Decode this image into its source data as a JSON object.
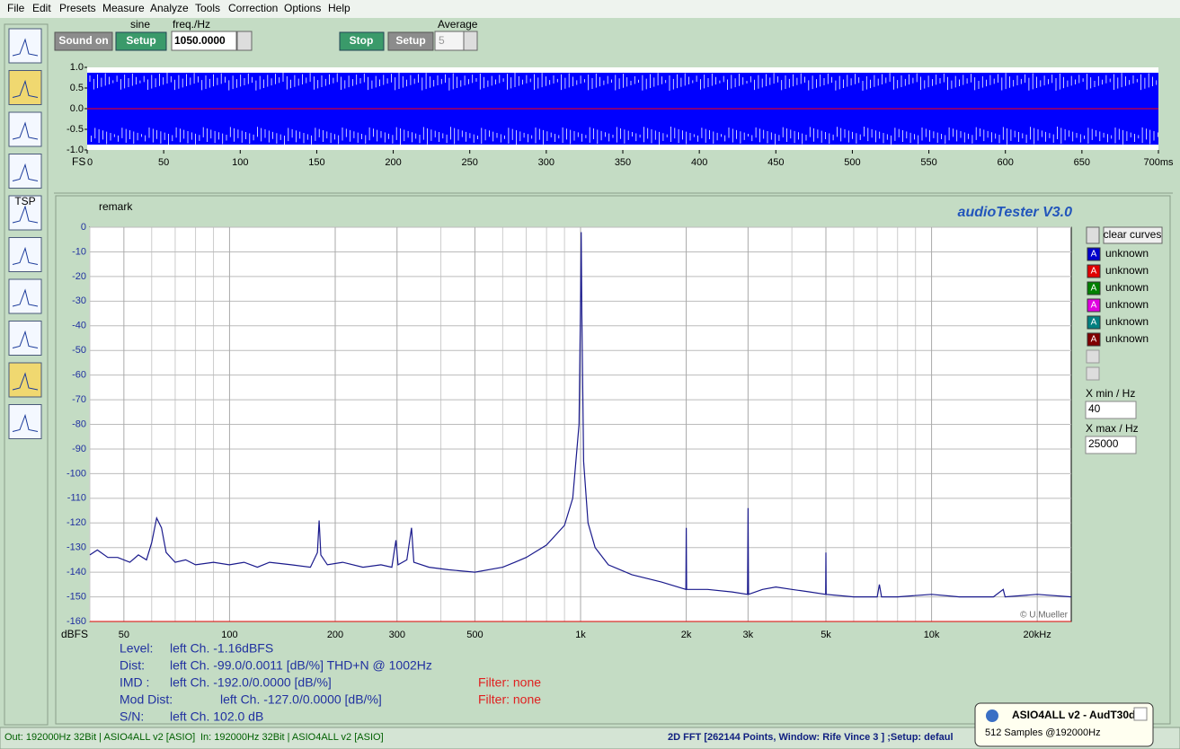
{
  "menu": [
    "File",
    "Edit",
    "Presets",
    "Measure",
    "Analyze",
    "Tools",
    "Correction",
    "Options",
    "Help"
  ],
  "toolbar": {
    "sine_label": "sine",
    "sound_on": "Sound on",
    "setup": "Setup",
    "freq_label": "freq./Hz",
    "freq_value": "1050.0000",
    "stop": "Stop",
    "setup2": "Setup",
    "average_label": "Average",
    "average_value": "5"
  },
  "sidebar": {
    "tsp": "TSP"
  },
  "scope": {
    "amplitude": 0.87,
    "color": "#0000ff",
    "zero_color": "#ff0000",
    "fs": "FS",
    "ylim": [
      -1,
      1
    ],
    "yticks": [
      {
        "value": 1,
        "label": "1.0"
      },
      {
        "value": 0.5,
        "label": "0.5"
      },
      {
        "value": 0,
        "label": "0.0"
      },
      {
        "value": -0.5,
        "label": "-0.5"
      },
      {
        "value": -1,
        "label": "-1.0"
      }
    ],
    "xlim": [
      0,
      700
    ],
    "xticks": [
      0,
      50,
      100,
      150,
      200,
      250,
      300,
      350,
      400,
      450,
      500,
      550,
      600,
      650,
      {
        "value": 700,
        "label": "700ms"
      }
    ]
  },
  "spectrum": {
    "title": "audioTester  V3.0",
    "remark": "remark",
    "ylabel": "dBFS",
    "credit": "© U.Mueller",
    "log_x": true,
    "grid": true,
    "ylim": [
      -160,
      0
    ],
    "yticks": [
      0,
      -10,
      -20,
      -30,
      -40,
      -50,
      -60,
      -70,
      -80,
      -90,
      -100,
      -110,
      -120,
      -130,
      -140,
      -150,
      -160
    ],
    "xlim": [
      40,
      25000
    ],
    "xticks": [
      50,
      100,
      200,
      300,
      500,
      {
        "value": 1000,
        "label": "1k"
      },
      {
        "value": 2000,
        "label": "2k"
      },
      {
        "value": 3000,
        "label": "3k"
      },
      {
        "value": 5000,
        "label": "5k"
      },
      {
        "value": 10000,
        "label": "10k"
      },
      {
        "value": 20000,
        "label": "20kHz"
      }
    ],
    "minor_xgrid": [
      40,
      60,
      70,
      80,
      90,
      400,
      600,
      700,
      800,
      900,
      4000,
      6000,
      7000,
      8000,
      9000
    ],
    "curve": {
      "color": "#1a1a8c",
      "freq": [
        40,
        42,
        45,
        48,
        52,
        55,
        58,
        60,
        62,
        64,
        66,
        70,
        75,
        80,
        90,
        100,
        110,
        120,
        130,
        150,
        170,
        178,
        180,
        182,
        190,
        210,
        240,
        270,
        290,
        298,
        302,
        320,
        330,
        335,
        370,
        420,
        500,
        600,
        650,
        700,
        800,
        900,
        950,
        990,
        1000,
        1004,
        1008,
        1020,
        1050,
        1100,
        1200,
        1400,
        1700,
        1995,
        2000,
        2005,
        2300,
        2700,
        2990,
        3000,
        3010,
        3300,
        3600,
        4000,
        4500,
        4990,
        5000,
        5010,
        6000,
        7000,
        7100,
        7200,
        8000,
        10000,
        12000,
        15000,
        16000,
        16200,
        20000,
        25000
      ],
      "db": [
        -133,
        -131,
        -134,
        -134,
        -136,
        -133,
        -135,
        -128,
        -118,
        -122,
        -132,
        -136,
        -135,
        -137,
        -136,
        -137,
        -136,
        -138,
        -136,
        -137,
        -138,
        -132,
        -119,
        -133,
        -137,
        -136,
        -138,
        -137,
        -138,
        -127,
        -137,
        -135,
        -122,
        -136,
        -138,
        -139,
        -140,
        -138,
        -136,
        -134,
        -129,
        -121,
        -110,
        -80,
        -30,
        -2,
        -35,
        -95,
        -120,
        -130,
        -137,
        -141,
        -144,
        -147,
        -122,
        -147,
        -147,
        -148,
        -149,
        -114,
        -149,
        -147,
        -146,
        -147,
        -148,
        -149,
        -132,
        -149,
        -150,
        -150,
        -145,
        -150,
        -150,
        -149,
        -150,
        -150,
        -147,
        -150,
        -149,
        -150
      ]
    },
    "clear_curves": "clear curves",
    "legend": [
      {
        "name": "unknown",
        "color": "#0000cc"
      },
      {
        "name": "unknown",
        "color": "#e00000"
      },
      {
        "name": "unknown",
        "color": "#008000"
      },
      {
        "name": "unknown",
        "color": "#e000e0"
      },
      {
        "name": "unknown",
        "color": "#008080"
      },
      {
        "name": "unknown",
        "color": "#800000"
      }
    ],
    "legend_icon": "A",
    "xmin_label": "X min / Hz",
    "xmin_value": "40",
    "xmax_label": "X max / Hz",
    "xmax_value": "25000"
  },
  "results": [
    {
      "label": "Level:",
      "value": "left Ch. -1.16dBFS"
    },
    {
      "label": "Dist:",
      "value": "left Ch. -99.0/0.0011 [dB/%] THD+N  @ 1002Hz"
    },
    {
      "label": "IMD  :",
      "value": "left Ch. -192.0/0.0000 [dB/%]",
      "filter": "Filter: none"
    },
    {
      "label": "Mod Dist:",
      "value": "left Ch. -127.0/0.0000 [dB/%]",
      "filter": "Filter: none"
    },
    {
      "label": "S/N:",
      "value": "left Ch. 102.0 dB"
    }
  ],
  "status": {
    "out": "Out: 192000Hz 32Bit  | ASIO4ALL v2 [ASIO]",
    "in": "In: 192000Hz 32Bit  | ASIO4ALL v2 [ASIO]",
    "fft": "2D FFT [262144 Points, Window: Rife Vince 3 ] ;Setup:  defaul"
  },
  "popup": {
    "title": "ASIO4ALL v2 - AudT30d",
    "text": "512 Samples   @192000Hz"
  }
}
